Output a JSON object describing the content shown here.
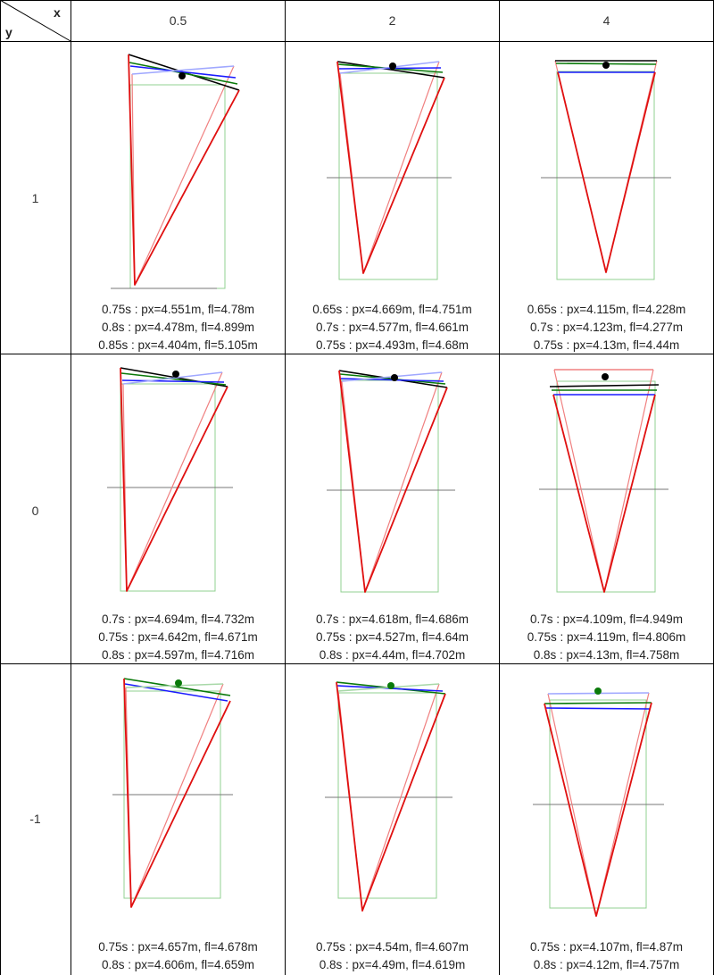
{
  "corner": {
    "x_label": "x",
    "y_label": "y"
  },
  "columns": [
    "0.5",
    "2",
    "4"
  ],
  "rows": [
    "1",
    "0",
    "-1"
  ],
  "colors": {
    "frame": "#000000",
    "black": "#000000",
    "green": "#0a7a0a",
    "blue": "#1a1aff",
    "light_blue": "#a0a8ff",
    "red": "#e01010",
    "light_red": "#f08080",
    "light_green_rect": "#90d090",
    "gray_line": "#777777",
    "pivot_black": "#000000",
    "pivot_green": "#0a7a0a"
  },
  "cells": [
    {
      "row": "1",
      "col": "0.5",
      "captions": [
        "0.75s : px=4.551m, fl=4.78m",
        "0.8s : px=4.478m, fl=4.899m",
        "0.85s : px=4.404m, fl=5.105m"
      ]
    },
    {
      "row": "1",
      "col": "2",
      "captions": [
        "0.65s : px=4.669m, fl=4.751m",
        "0.7s : px=4.577m, fl=4.661m",
        "0.75s : px=4.493m, fl=4.68m"
      ]
    },
    {
      "row": "1",
      "col": "4",
      "captions": [
        "0.65s : px=4.115m, fl=4.228m",
        "0.7s : px=4.123m, fl=4.277m",
        "0.75s : px=4.13m, fl=4.44m"
      ]
    },
    {
      "row": "0",
      "col": "0.5",
      "captions": [
        "0.7s : px=4.694m, fl=4.732m",
        "0.75s : px=4.642m, fl=4.671m",
        "0.8s : px=4.597m, fl=4.716m"
      ]
    },
    {
      "row": "0",
      "col": "2",
      "captions": [
        "0.7s : px=4.618m, fl=4.686m",
        "0.75s : px=4.527m, fl=4.64m",
        "0.8s : px=4.44m, fl=4.702m"
      ]
    },
    {
      "row": "0",
      "col": "4",
      "captions": [
        "0.7s : px=4.109m, fl=4.949m",
        "0.75s : px=4.119m, fl=4.806m",
        "0.8s : px=4.13m, fl=4.758m"
      ]
    },
    {
      "row": "-1",
      "col": "0.5",
      "captions": [
        "0.75s : px=4.657m, fl=4.678m",
        "0.8s : px=4.606m, fl=4.659m"
      ]
    },
    {
      "row": "-1",
      "col": "2",
      "captions": [
        "0.75s : px=4.54m, fl=4.607m",
        "0.8s : px=4.49m, fl=4.619m"
      ]
    },
    {
      "row": "-1",
      "col": "4",
      "captions": [
        "0.75s : px=4.107m, fl=4.87m",
        "0.8s : px=4.12m, fl=4.757m"
      ]
    }
  ]
}
